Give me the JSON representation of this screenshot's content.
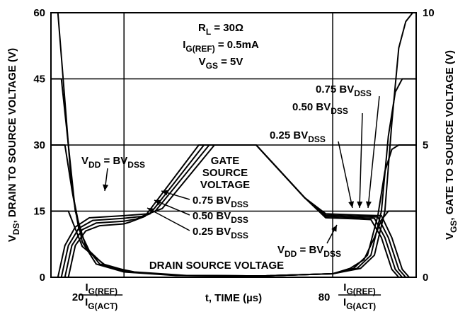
{
  "chart_data": {
    "type": "line",
    "x_label": "t, TIME (µs)",
    "y_label": [
      {
        "t": "V"
      },
      {
        "s": "DS"
      },
      {
        "t": ", DRAIN TO SOURCE VOLTAGE (V)"
      }
    ],
    "y2_label": [
      {
        "t": "V"
      },
      {
        "s": "GS"
      },
      {
        "t": ", GATE TO SOURCE VOLTAGE (V)"
      }
    ],
    "xlim": [
      -1,
      104
    ],
    "xticks": [
      20,
      80
    ],
    "x_tick_fractions": [
      {
        "numerator": [
          {
            "t": "I"
          },
          {
            "s": "G(REF)"
          }
        ],
        "denominator": [
          {
            "t": "I"
          },
          {
            "s": "G(ACT)"
          }
        ]
      },
      {
        "numerator": [
          {
            "t": "I"
          },
          {
            "s": "G(REF)"
          }
        ],
        "denominator": [
          {
            "t": "I"
          },
          {
            "s": "G(ACT)"
          }
        ]
      }
    ],
    "ylim": [
      0,
      60
    ],
    "yticks": [
      0,
      15,
      30,
      45,
      60
    ],
    "y2lim": [
      0,
      10
    ],
    "y2ticks": [
      0,
      5,
      10
    ],
    "grid": true,
    "color": "#000000",
    "series": [
      {
        "x": [
          -1,
          1,
          3,
          5,
          8,
          12,
          20,
          35,
          60,
          80,
          88,
          92,
          95,
          97,
          99,
          101,
          103,
          104
        ],
        "values": [
          60,
          60,
          40,
          20,
          8,
          3,
          1.2,
          0.4,
          0.3,
          0.8,
          2,
          5,
          15,
          35,
          52,
          58,
          60,
          60
        ]
      },
      {
        "x": [
          -1,
          2,
          4,
          6,
          9,
          13,
          21,
          36,
          60,
          80,
          87,
          91,
          94,
          96,
          98,
          100,
          102,
          104
        ],
        "values": [
          45,
          45,
          30,
          15,
          7,
          3,
          1.2,
          0.4,
          0.3,
          0.8,
          2,
          5,
          15,
          32,
          42,
          45,
          45,
          45
        ]
      },
      {
        "x": [
          -1,
          3,
          5,
          7,
          10,
          14,
          22,
          37,
          60,
          80,
          86,
          90,
          93,
          95,
          97,
          99,
          101,
          104
        ],
        "values": [
          30,
          30,
          20,
          11,
          6,
          3,
          1.2,
          0.4,
          0.3,
          0.8,
          2,
          5,
          14,
          24,
          29,
          30,
          30,
          30
        ]
      },
      {
        "x": [
          -1,
          4,
          6,
          8,
          11,
          15,
          23,
          38,
          60,
          80,
          85,
          89,
          92,
          94,
          96,
          98,
          100,
          104
        ],
        "values": [
          15,
          15,
          11,
          7,
          5,
          2.5,
          1.2,
          0.4,
          0.3,
          0.8,
          2,
          4,
          9,
          13,
          15,
          15,
          15,
          15
        ]
      },
      {
        "axis": "y2",
        "x": [
          1,
          3,
          6,
          10,
          20,
          27,
          31,
          46,
          58,
          72,
          78,
          88,
          94,
          97,
          100,
          102
        ],
        "values": [
          0,
          1.2,
          1.9,
          2.25,
          2.33,
          2.4,
          2.6,
          5,
          5,
          3,
          2.4,
          2.35,
          2.33,
          1.5,
          0.3,
          0
        ]
      },
      {
        "axis": "y2",
        "x": [
          2,
          4,
          7,
          11,
          20,
          25,
          29,
          44.5,
          58,
          72,
          78,
          88,
          93,
          96,
          99,
          101
        ],
        "values": [
          0,
          1.2,
          1.85,
          2.15,
          2.23,
          2.3,
          2.5,
          5,
          5,
          3,
          2.35,
          2.3,
          2.28,
          1.5,
          0.3,
          0
        ]
      },
      {
        "axis": "y2",
        "x": [
          3,
          5,
          8,
          12,
          20,
          23.5,
          27.5,
          43,
          58,
          72,
          78,
          88,
          92,
          95,
          98,
          100
        ],
        "values": [
          0,
          1.2,
          1.8,
          2.05,
          2.12,
          2.2,
          2.4,
          5,
          5,
          3,
          2.3,
          2.25,
          2.23,
          1.5,
          0.3,
          0
        ]
      },
      {
        "axis": "y2",
        "x": [
          4,
          6,
          9,
          13,
          20,
          22,
          26,
          41.5,
          58,
          72,
          78,
          88,
          91,
          94,
          97,
          99
        ],
        "values": [
          0,
          1.2,
          1.75,
          1.95,
          2.02,
          2.1,
          2.3,
          5,
          5,
          3,
          2.25,
          2.2,
          2.18,
          1.5,
          0.3,
          0
        ]
      }
    ],
    "annotations": [
      [
        {
          "t": "R"
        },
        {
          "s": "L"
        },
        {
          "t": " = 30Ω"
        }
      ],
      [
        {
          "t": "I"
        },
        {
          "s": "G(REF)"
        },
        {
          "t": " = 0.5mA"
        }
      ],
      [
        {
          "t": "V"
        },
        {
          "s": "GS"
        },
        {
          "t": " = 5V"
        }
      ],
      [
        {
          "t": "GATE"
        }
      ],
      [
        {
          "t": "SOURCE"
        }
      ],
      [
        {
          "t": "VOLTAGE"
        }
      ],
      [
        {
          "t": "DRAIN SOURCE VOLTAGE"
        }
      ],
      [
        {
          "t": "V"
        },
        {
          "s": "DD"
        },
        {
          "t": " = BV"
        },
        {
          "s": "DSS"
        }
      ],
      [
        {
          "t": "0.75 BV"
        },
        {
          "s": "DSS"
        }
      ],
      [
        {
          "t": "0.50 BV"
        },
        {
          "s": "DSS"
        }
      ],
      [
        {
          "t": "0.25 BV"
        },
        {
          "s": "DSS"
        }
      ],
      [
        {
          "t": "V"
        },
        {
          "s": "DD"
        },
        {
          "t": " = BV"
        },
        {
          "s": "DSS"
        }
      ],
      [
        {
          "t": "0.75 BV"
        },
        {
          "s": "DSS"
        }
      ],
      [
        {
          "t": "0.50 BV"
        },
        {
          "s": "DSS"
        }
      ],
      [
        {
          "t": "0.25 BV"
        },
        {
          "s": "DSS"
        }
      ]
    ]
  }
}
